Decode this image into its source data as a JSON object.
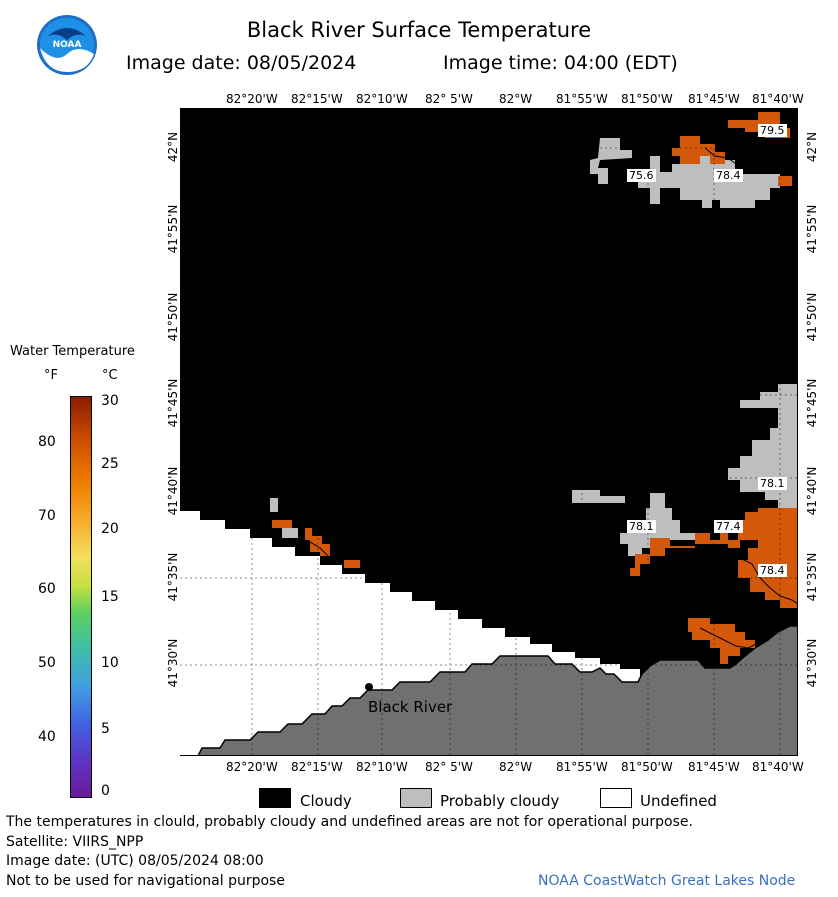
{
  "header": {
    "title": "Black River Surface Temperature",
    "image_date_label": "Image date: 08/05/2024",
    "image_time_label": "Image time: 04:00 (EDT)"
  },
  "logo": {
    "text": "NOAA"
  },
  "colorbar": {
    "title": "Water Temperature",
    "unit_f": "°F",
    "unit_c": "°C",
    "f_ticks": [
      "80",
      "70",
      "60",
      "50",
      "40"
    ],
    "c_ticks": [
      "30",
      "25",
      "20",
      "15",
      "10",
      "5",
      "0"
    ]
  },
  "map": {
    "lon_labels": [
      "82°20'W",
      "82°15'W",
      "82°10'W",
      "82° 5'W",
      "82°W",
      "81°55'W",
      "81°50'W",
      "81°45'W",
      "81°40'W"
    ],
    "lat_labels": [
      "42°N",
      "41°55'N",
      "41°50'N",
      "41°45'N",
      "41°40'N",
      "41°35'N",
      "41°30'N"
    ],
    "place_label": "Black River",
    "temperature_labels": [
      "79.5",
      "75.6",
      "78.4",
      "78.1",
      "78.1",
      "77.4",
      "78.4"
    ]
  },
  "legend": {
    "cloudy": "Cloudy",
    "probably_cloudy": "Probably cloudy",
    "undefined": "Undefined",
    "colors": {
      "cloudy": "#000000",
      "probably_cloudy": "#bebebe",
      "undefined": "#ffffff",
      "land": "#707070",
      "warm_water": "#d4580a"
    }
  },
  "footer": {
    "disclaimer": "The temperatures in clould, probably cloudy and undefined areas are not for operational purpose.",
    "satellite": "Satellite: VIIRS_NPP",
    "image_date_utc": "Image date: (UTC) 08/05/2024  08:00",
    "nav_warning": "Not to be used for navigational purpose",
    "credit": "NOAA CoastWatch Great Lakes Node"
  }
}
